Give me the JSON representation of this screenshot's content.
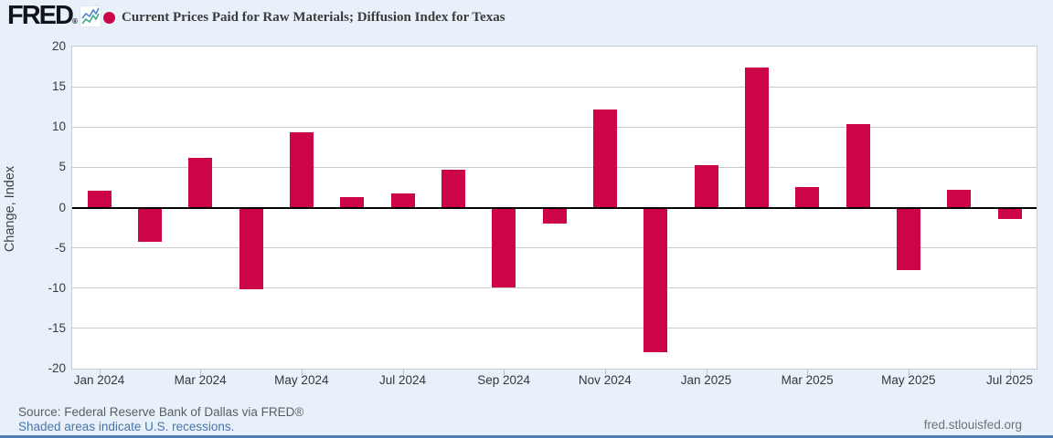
{
  "header": {
    "logo": "FRED",
    "logo_reg_mark": "®",
    "title": "Current Prices Paid for Raw Materials; Diffusion Index for Texas"
  },
  "icons": {
    "logo_icon": "sparkline-chart-icon",
    "legend_marker": "series-dot-marker"
  },
  "colors": {
    "background": "#e8f1fa",
    "plot_background": "#ffffff",
    "bar": "#cc0549",
    "grid": "#cccccc",
    "zero_line": "#000000",
    "link_blue": "#4a74a8",
    "bottom_strip_blue": "#4d7fb5"
  },
  "chart_data": {
    "type": "bar",
    "title": "Current Prices Paid for Raw Materials; Diffusion Index for Texas",
    "xlabel": "",
    "ylabel": "Change, Index",
    "ylim": [
      -20,
      20
    ],
    "grid_step": 5,
    "grid": true,
    "legend_position": "top-left",
    "categories": [
      "Jan 2024",
      "Feb 2024",
      "Mar 2024",
      "Apr 2024",
      "May 2024",
      "Jun 2024",
      "Jul 2024",
      "Aug 2024",
      "Sep 2024",
      "Oct 2024",
      "Nov 2024",
      "Dec 2024",
      "Jan 2025",
      "Feb 2025",
      "Mar 2025",
      "Apr 2025",
      "May 2025",
      "Jun 2025",
      "Jul 2025"
    ],
    "values": [
      2.1,
      -4.2,
      6.2,
      -10.1,
      9.3,
      1.3,
      1.7,
      4.7,
      -9.9,
      -2.0,
      12.2,
      -18.0,
      5.3,
      17.4,
      2.6,
      10.4,
      -7.8,
      2.2,
      -1.4
    ],
    "x_tick_labels": [
      "Jan 2024",
      "Mar 2024",
      "May 2024",
      "Jul 2024",
      "Sep 2024",
      "Nov 2024",
      "Jan 2025",
      "Mar 2025",
      "May 2025",
      "Jul 2025"
    ],
    "y_tick_labels": [
      "20",
      "15",
      "10",
      "5",
      "0",
      "-5",
      "-10",
      "-15",
      "-20"
    ]
  },
  "footer": {
    "source": "Source: Federal Reserve Bank of Dallas via FRED®",
    "recession_note": "Shaded areas indicate U.S. recessions.",
    "site": "fred.stlouisfed.org"
  }
}
